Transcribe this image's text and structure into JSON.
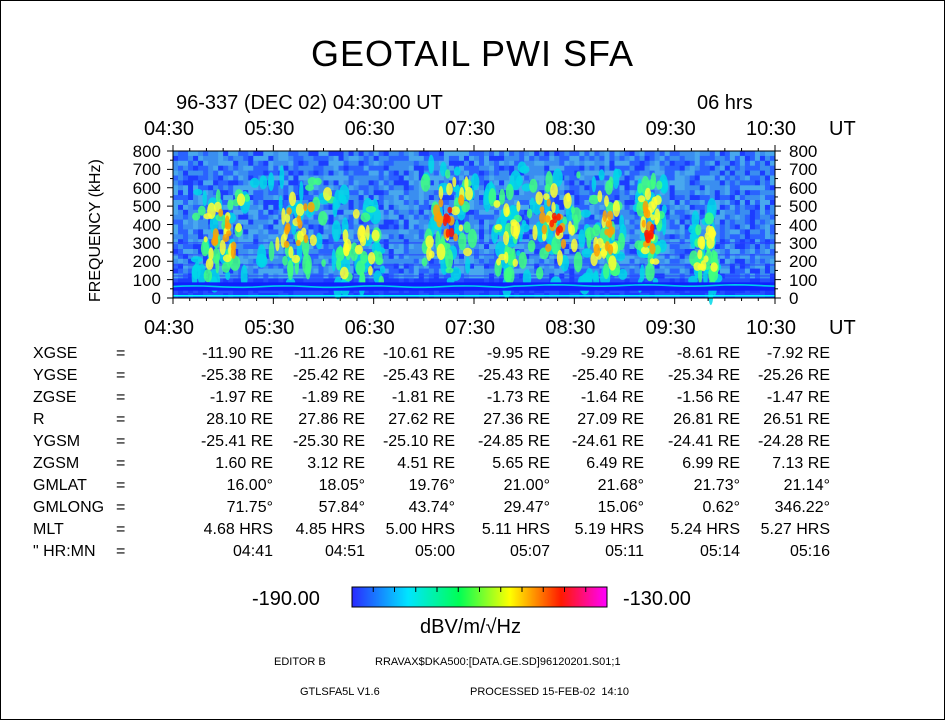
{
  "header": {
    "title": "GEOTAIL PWI SFA",
    "date_line": "96-337 (DEC 02) 04:30:00 UT",
    "duration": "06 hrs"
  },
  "chart_data": {
    "type": "heatmap",
    "title": "GEOTAIL PWI SFA",
    "ylabel": "FREQUENCY (kHz)",
    "xlabel": "UT",
    "x_ticks": [
      "04:30",
      "05:30",
      "06:30",
      "07:30",
      "08:30",
      "09:30",
      "10:30"
    ],
    "y_ticks": [
      "800",
      "700",
      "600",
      "500",
      "400",
      "300",
      "200",
      "100",
      "0"
    ],
    "ylim": [
      0,
      800
    ],
    "xlim": [
      "04:30",
      "10:30"
    ],
    "colorbar": {
      "min": "-190.00",
      "max": "-130.00",
      "unit": "dBV/m/√Hz",
      "colors": [
        "#2222ff",
        "#00ddff",
        "#00ff66",
        "#ffff00",
        "#ff2200",
        "#ff00ff"
      ]
    },
    "bursts": [
      {
        "center_min": 30,
        "width_min": 22,
        "peak_khz": 350,
        "intensity": 0.7
      },
      {
        "center_min": 78,
        "width_min": 28,
        "peak_khz": 380,
        "intensity": 0.75
      },
      {
        "center_min": 112,
        "width_min": 18,
        "peak_khz": 300,
        "intensity": 0.65
      },
      {
        "center_min": 165,
        "width_min": 22,
        "peak_khz": 420,
        "intensity": 0.8
      },
      {
        "center_min": 200,
        "width_min": 14,
        "peak_khz": 350,
        "intensity": 0.65
      },
      {
        "center_min": 228,
        "width_min": 22,
        "peak_khz": 400,
        "intensity": 0.8
      },
      {
        "center_min": 258,
        "width_min": 14,
        "peak_khz": 380,
        "intensity": 0.75
      },
      {
        "center_min": 285,
        "width_min": 10,
        "peak_khz": 380,
        "intensity": 0.95
      },
      {
        "center_min": 318,
        "width_min": 10,
        "peak_khz": 250,
        "intensity": 0.45
      }
    ]
  },
  "ephemeris": {
    "rows": [
      {
        "label": "XGSE",
        "values": [
          "-11.90 RE",
          "-11.26 RE",
          "-10.61 RE",
          "-9.95 RE",
          "-9.29 RE",
          "-8.61 RE",
          "-7.92 RE"
        ]
      },
      {
        "label": "YGSE",
        "values": [
          "-25.38 RE",
          "-25.42 RE",
          "-25.43 RE",
          "-25.43 RE",
          "-25.40 RE",
          "-25.34 RE",
          "-25.26 RE"
        ]
      },
      {
        "label": "ZGSE",
        "values": [
          "-1.97 RE",
          "-1.89 RE",
          "-1.81 RE",
          "-1.73 RE",
          "-1.64 RE",
          "-1.56 RE",
          "-1.47 RE"
        ]
      },
      {
        "label": "R",
        "values": [
          "28.10 RE",
          "27.86 RE",
          "27.62 RE",
          "27.36 RE",
          "27.09 RE",
          "26.81 RE",
          "26.51 RE"
        ]
      },
      {
        "label": "YGSM",
        "values": [
          "-25.41 RE",
          "-25.30 RE",
          "-25.10 RE",
          "-24.85 RE",
          "-24.61 RE",
          "-24.41 RE",
          "-24.28 RE"
        ]
      },
      {
        "label": "ZGSM",
        "values": [
          "1.60 RE",
          "3.12 RE",
          "4.51 RE",
          "5.65 RE",
          "6.49 RE",
          "6.99 RE",
          "7.13 RE"
        ]
      },
      {
        "label": "GMLAT",
        "values": [
          "16.00°",
          "18.05°",
          "19.76°",
          "21.00°",
          "21.68°",
          "21.73°",
          "21.14°"
        ]
      },
      {
        "label": "GMLONG",
        "values": [
          "71.75°",
          "57.84°",
          "43.74°",
          "29.47°",
          "15.06°",
          "0.62°",
          "346.22°"
        ]
      },
      {
        "label": "MLT",
        "values": [
          "4.68 HRS",
          "4.85 HRS",
          "5.00 HRS",
          "5.11 HRS",
          "5.19 HRS",
          "5.24 HRS",
          "5.27 HRS"
        ]
      },
      {
        "label": "\" HR:MN",
        "values": [
          "04:41",
          "04:51",
          "05:00",
          "05:07",
          "05:11",
          "05:14",
          "05:16"
        ]
      }
    ],
    "equals": "="
  },
  "footer": {
    "editor": "EDITOR B",
    "path": "RRAVAX$DKA500:[DATA.GE.SD]96120201.S01;1",
    "version": "GTLSFA5L V1.6",
    "processed": "PROCESSED 15-FEB-02  14:10"
  }
}
